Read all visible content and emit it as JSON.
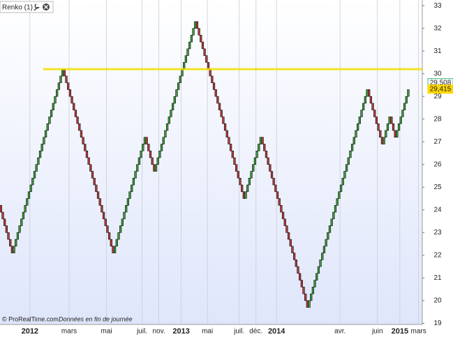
{
  "chart_data": {
    "type": "renko",
    "header": "Renko (1)",
    "footer_source": "© ProRealTime.com",
    "footer_note": "Données en fin de journée",
    "brick_size": 0.3,
    "pivots": [
      24.2,
      22.1,
      30.2,
      22.1,
      27.2,
      25.7,
      32.3,
      24.5,
      27.2,
      19.7,
      29.3,
      26.9,
      28.1,
      27.2,
      29.3
    ],
    "up_color": "#3a9a3a",
    "down_color": "#b23a3a",
    "level": 30.2,
    "level_color": "#f0e000",
    "price_labels": [
      {
        "value": 29.508,
        "label": "29,508",
        "color": "#3cb371"
      },
      {
        "value": 29.415,
        "label": "29,415",
        "color": "#ffd700"
      }
    ],
    "xlim": [
      0,
      226
    ],
    "xticks": [
      {
        "value": 16,
        "label": "2012"
      },
      {
        "value": 37,
        "label": "mars"
      },
      {
        "value": 57,
        "label": "mai"
      },
      {
        "value": 76,
        "label": "juil."
      },
      {
        "value": 85,
        "label": "nov."
      },
      {
        "value": 97,
        "label": "2013"
      },
      {
        "value": 111,
        "label": "mai"
      },
      {
        "value": 128,
        "label": "juil."
      },
      {
        "value": 137,
        "label": "déc."
      },
      {
        "value": 148,
        "label": "2014"
      },
      {
        "value": 182,
        "label": "avr."
      },
      {
        "value": 202,
        "label": "juin"
      },
      {
        "value": 214,
        "label": "2015"
      },
      {
        "value": 224,
        "label": "mars"
      }
    ],
    "ylim": [
      18.95,
      33.25
    ],
    "yticks": [
      19,
      20,
      21,
      22,
      23,
      24,
      25,
      26,
      27,
      28,
      29,
      30,
      31,
      32,
      33
    ],
    "grid": true
  }
}
